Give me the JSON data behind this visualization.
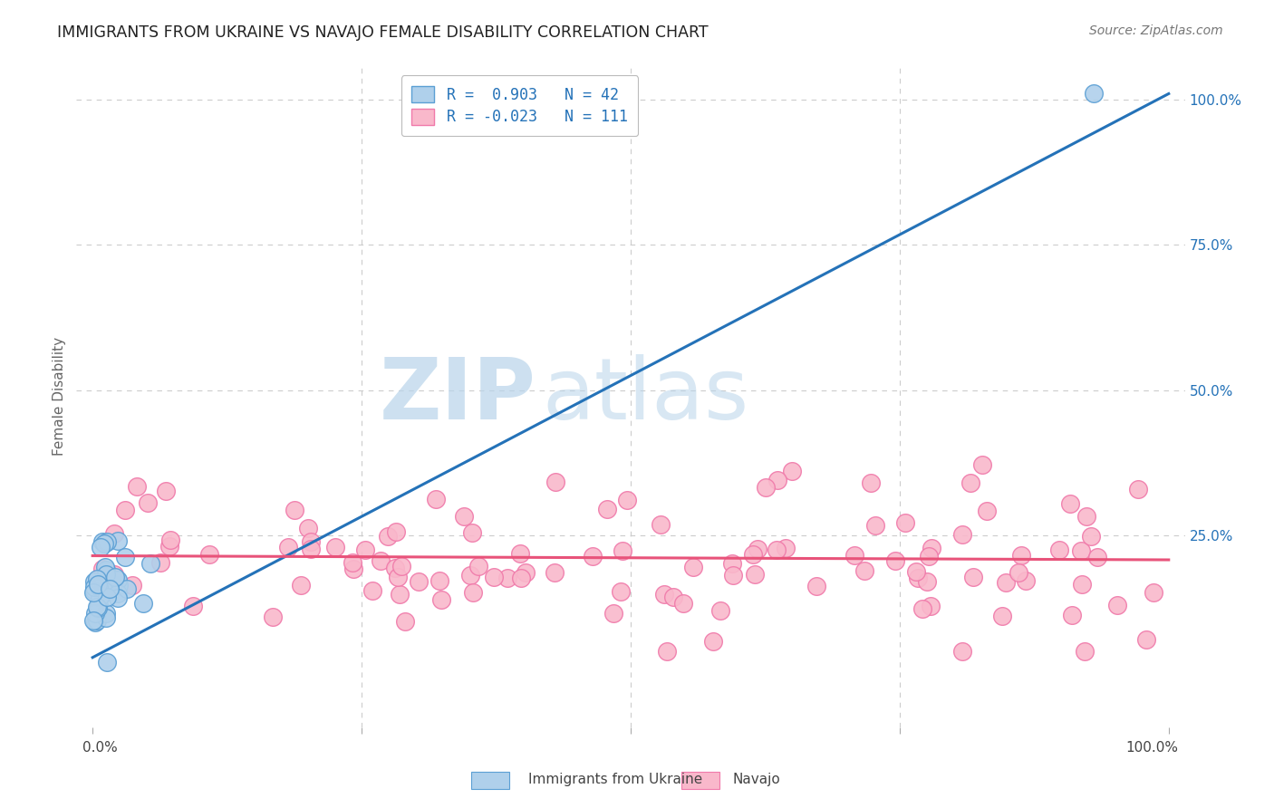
{
  "title": "IMMIGRANTS FROM UKRAINE VS NAVAJO FEMALE DISABILITY CORRELATION CHART",
  "source": "Source: ZipAtlas.com",
  "ylabel": "Female Disability",
  "ytick_labels": [
    "25.0%",
    "50.0%",
    "75.0%",
    "100.0%"
  ],
  "ytick_values": [
    0.25,
    0.5,
    0.75,
    1.0
  ],
  "legend_blue_R": "0.903",
  "legend_blue_N": "42",
  "legend_pink_R": "-0.023",
  "legend_pink_N": "111",
  "legend_label_blue": "Immigrants from Ukraine",
  "legend_label_pink": "Navajo",
  "watermark_zip": "ZIP",
  "watermark_atlas": "atlas",
  "blue_color": "#afd0eb",
  "blue_edge_color": "#5b9fd4",
  "pink_color": "#f9b8cb",
  "pink_edge_color": "#f07aaa",
  "blue_line_color": "#2472b8",
  "pink_line_color": "#e8537a",
  "grid_color": "#cccccc",
  "background_color": "#ffffff",
  "title_color": "#222222",
  "source_color": "#777777",
  "blue_R": 0.903,
  "pink_R": -0.023,
  "blue_N": 42,
  "pink_N": 111,
  "blue_trend_x": [
    0.0,
    1.0
  ],
  "blue_trend_y": [
    0.04,
    1.01
  ],
  "pink_trend_x": [
    0.0,
    1.0
  ],
  "pink_trend_y": [
    0.215,
    0.208
  ],
  "xlim": [
    -0.015,
    1.015
  ],
  "ylim": [
    -0.08,
    1.06
  ]
}
